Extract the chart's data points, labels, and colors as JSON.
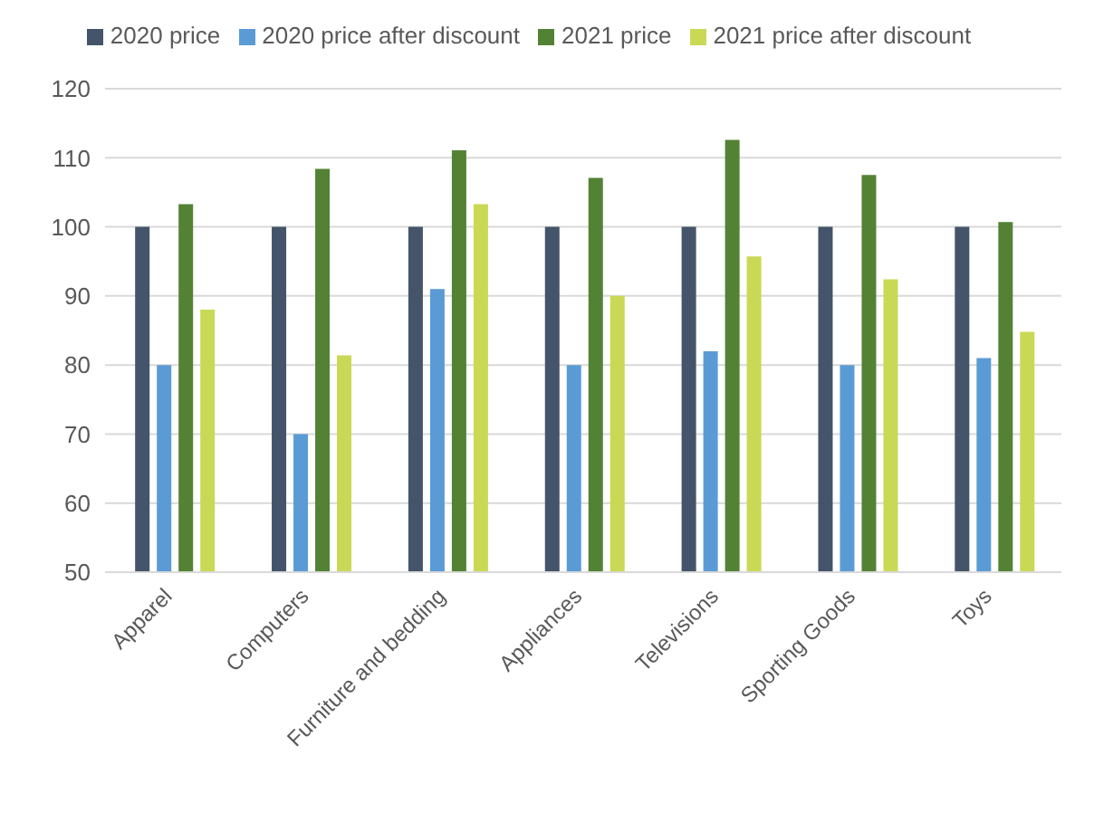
{
  "chart_data": {
    "type": "bar",
    "categories": [
      "Apparel",
      "Computers",
      "Furniture and bedding",
      "Appliances",
      "Televisions",
      "Sporting Goods",
      "Toys"
    ],
    "series": [
      {
        "name": "2020 price",
        "color": "#44546a",
        "values": [
          100,
          100,
          100,
          100,
          100,
          100,
          100
        ]
      },
      {
        "name": "2020 price after discount",
        "color": "#5b9bd5",
        "values": [
          80,
          70,
          91,
          80,
          82,
          80,
          81
        ]
      },
      {
        "name": "2021 price",
        "color": "#548235",
        "values": [
          103.3,
          108.4,
          111.1,
          107.1,
          112.6,
          107.5,
          100.7
        ]
      },
      {
        "name": "2021 price after discount",
        "color": "#c9d955",
        "values": [
          88,
          81.4,
          103.3,
          90,
          95.7,
          92.4,
          84.8
        ]
      }
    ],
    "ylim": [
      50,
      120
    ],
    "yticks": [
      50,
      60,
      70,
      80,
      90,
      100,
      110,
      120
    ],
    "grid": "y",
    "legend": "top"
  }
}
